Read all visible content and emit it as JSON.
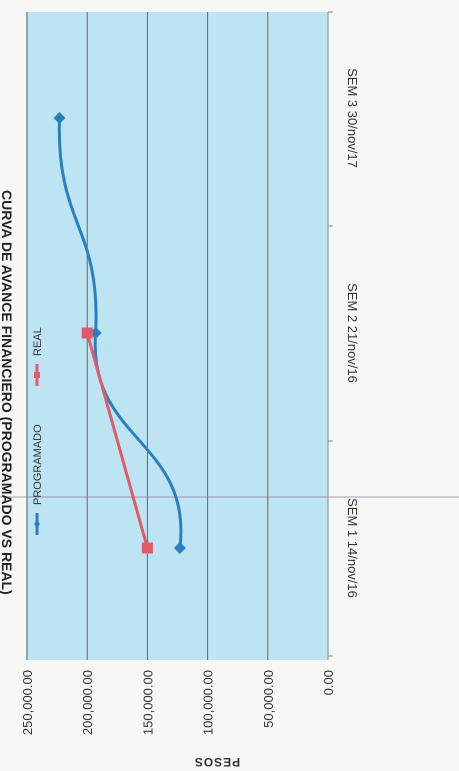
{
  "chart_data": {
    "type": "line",
    "title": "CURVA DE AVANCE FINANCIERO (PROGRAMADO VS REAL)",
    "xlabel": "",
    "ylabel": "PESOS",
    "categories": [
      "SEM 1   14/nov/16",
      "SEM 2   21/nov/16",
      "SEM 3   30/nov/17"
    ],
    "ylim": [
      0,
      250000
    ],
    "yticks": [
      "0.00",
      "50,000.00",
      "100,000.00",
      "150,000.00",
      "200,000.00",
      "250,000.00"
    ],
    "grid": true,
    "legend": "top",
    "series": [
      {
        "name": "PROGRAMADO",
        "values": [
          123000,
          193000,
          223000
        ],
        "color": "#2a7fc1",
        "marker": "diamond"
      },
      {
        "name": "REAL",
        "values": [
          150000,
          200000,
          null
        ],
        "color": "#e05a6a",
        "marker": "square"
      }
    ],
    "plot_background": "#bde4f2"
  }
}
